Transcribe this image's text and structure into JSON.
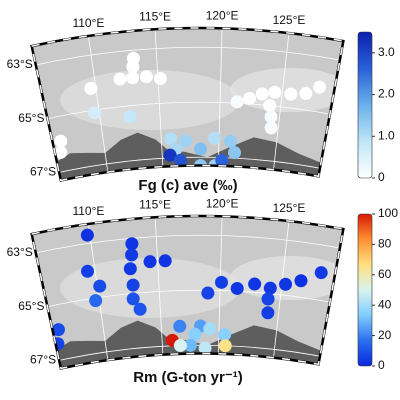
{
  "map": {
    "lon_range": [
      105.7,
      129.1
    ],
    "lat_range": [
      62.3,
      67.3
    ]
  },
  "panels": [
    {
      "title": "Fg (c) ave (‰)",
      "lon_ticks": [
        {
          "value": 110,
          "label": "110°E"
        },
        {
          "value": 115,
          "label": "115°E"
        },
        {
          "value": 120,
          "label": "120°E"
        },
        {
          "value": 125,
          "label": "125°E"
        }
      ],
      "lat_ticks": [
        {
          "value": 63,
          "label": "63°S"
        },
        {
          "value": 65,
          "label": "65°S"
        },
        {
          "value": 67,
          "label": "67°S"
        }
      ],
      "colorbar": {
        "clim": [
          0,
          3.5
        ],
        "colors": [
          "#ffffff",
          "#bfe6f8",
          "#6ab0ea",
          "#2a60d8",
          "#0a20b0"
        ],
        "ticks": [
          0,
          {
            "value": 1,
            "label": "1.0"
          },
          {
            "value": 2,
            "label": "2.0"
          },
          {
            "value": 3,
            "label": "3.0"
          }
        ]
      },
      "points": [
        {
          "lon": 112.0,
          "lat": 64.0,
          "value": 0
        },
        {
          "lon": 113.0,
          "lat": 64.0,
          "value": 0
        },
        {
          "lon": 114.1,
          "lat": 64.0,
          "value": 0
        },
        {
          "lon": 115.2,
          "lat": 64.1,
          "value": 0
        },
        {
          "lon": 113.2,
          "lat": 63.3,
          "value": 0
        },
        {
          "lon": 113.1,
          "lat": 63.6,
          "value": 0
        },
        {
          "lon": 109.6,
          "lat": 64.2,
          "value": 0
        },
        {
          "lon": 121.4,
          "lat": 64.95,
          "value": 0.1
        },
        {
          "lon": 122.4,
          "lat": 64.8,
          "value": 0
        },
        {
          "lon": 123.4,
          "lat": 64.6,
          "value": 0
        },
        {
          "lon": 124.4,
          "lat": 64.5,
          "value": 0
        },
        {
          "lon": 125.7,
          "lat": 64.5,
          "value": 0
        },
        {
          "lon": 126.9,
          "lat": 64.4,
          "value": 0
        },
        {
          "lon": 127.9,
          "lat": 64.1,
          "value": 0
        },
        {
          "lon": 124.1,
          "lat": 65.0,
          "value": 0
        },
        {
          "lon": 124.3,
          "lat": 65.4,
          "value": 0.1
        },
        {
          "lon": 124.4,
          "lat": 65.8,
          "value": 0.1
        },
        {
          "lon": 106.4,
          "lat": 65.9,
          "value": 0
        },
        {
          "lon": 106.2,
          "lat": 66.3,
          "value": 0
        },
        {
          "lon": 109.6,
          "lat": 65.1,
          "value": 0.6
        },
        {
          "lon": 112.5,
          "lat": 65.4,
          "value": 0.8
        },
        {
          "lon": 115.8,
          "lat": 66.3,
          "value": 1.0
        },
        {
          "lon": 117.1,
          "lat": 66.4,
          "value": 1.2
        },
        {
          "lon": 119.6,
          "lat": 66.3,
          "value": 1.0
        },
        {
          "lon": 121.0,
          "lat": 66.4,
          "value": 1.3
        },
        {
          "lon": 118.4,
          "lat": 66.7,
          "value": 1.5
        },
        {
          "lon": 116.2,
          "lat": 66.7,
          "value": 1.1
        },
        {
          "lon": 118.4,
          "lat": 67.3,
          "value": 1.4
        },
        {
          "lon": 119.7,
          "lat": 67.3,
          "value": 1.2
        },
        {
          "lon": 121.4,
          "lat": 66.8,
          "value": 1.4
        },
        {
          "lon": 115.7,
          "lat": 66.9,
          "value": 3.2
        },
        {
          "lon": 116.6,
          "lat": 67.1,
          "value": 2.8
        },
        {
          "lon": 120.3,
          "lat": 67.1,
          "value": 2.6
        }
      ]
    },
    {
      "title": "Rm (G-ton yr⁻¹)",
      "lon_ticks": [
        {
          "value": 110,
          "label": "110°E"
        },
        {
          "value": 115,
          "label": "115°E"
        },
        {
          "value": 120,
          "label": "120°E"
        },
        {
          "value": 125,
          "label": "125°E"
        }
      ],
      "lat_ticks": [
        {
          "value": 63,
          "label": "63°S"
        },
        {
          "value": 65,
          "label": "65°S"
        },
        {
          "value": 67,
          "label": "67°S"
        }
      ],
      "colorbar": {
        "clim": [
          0,
          100
        ],
        "colors": [
          "#0a28e0",
          "#2a70f0",
          "#80ccff",
          "#d8f4f0",
          "#ffe080",
          "#ff9030",
          "#d81808"
        ],
        "ticks": [
          0,
          20,
          40,
          60,
          80,
          100
        ]
      },
      "points": [
        {
          "lon": 109.8,
          "lat": 62.7,
          "value": 2
        },
        {
          "lon": 113.1,
          "lat": 63.2,
          "value": 3
        },
        {
          "lon": 113.0,
          "lat": 63.6,
          "value": 4
        },
        {
          "lon": 109.4,
          "lat": 64.0,
          "value": 5
        },
        {
          "lon": 110.2,
          "lat": 64.6,
          "value": 8
        },
        {
          "lon": 109.7,
          "lat": 65.1,
          "value": 15
        },
        {
          "lon": 112.8,
          "lat": 64.1,
          "value": 4
        },
        {
          "lon": 112.9,
          "lat": 64.7,
          "value": 6
        },
        {
          "lon": 112.8,
          "lat": 65.2,
          "value": 10
        },
        {
          "lon": 114.4,
          "lat": 63.9,
          "value": 3
        },
        {
          "lon": 115.6,
          "lat": 63.9,
          "value": 3
        },
        {
          "lon": 120.1,
          "lat": 64.7,
          "value": 5
        },
        {
          "lon": 121.4,
          "lat": 64.9,
          "value": 3
        },
        {
          "lon": 119.0,
          "lat": 65.1,
          "value": 6
        },
        {
          "lon": 122.8,
          "lat": 64.7,
          "value": 3
        },
        {
          "lon": 124.1,
          "lat": 64.8,
          "value": 4
        },
        {
          "lon": 125.3,
          "lat": 64.6,
          "value": 3
        },
        {
          "lon": 126.5,
          "lat": 64.4,
          "value": 2
        },
        {
          "lon": 128.0,
          "lat": 64.0,
          "value": 4
        },
        {
          "lon": 124.0,
          "lat": 65.2,
          "value": 6
        },
        {
          "lon": 124.1,
          "lat": 65.7,
          "value": 5
        },
        {
          "lon": 106.2,
          "lat": 65.9,
          "value": 8
        },
        {
          "lon": 105.9,
          "lat": 66.4,
          "value": 6
        },
        {
          "lon": 113.3,
          "lat": 65.6,
          "value": 10
        },
        {
          "lon": 116.6,
          "lat": 66.3,
          "value": 20
        },
        {
          "lon": 118.4,
          "lat": 66.3,
          "value": 25
        },
        {
          "lon": 117.9,
          "lat": 66.6,
          "value": 35
        },
        {
          "lon": 119.2,
          "lat": 66.4,
          "value": 40
        },
        {
          "lon": 120.5,
          "lat": 66.6,
          "value": 35
        },
        {
          "lon": 118.8,
          "lat": 67.1,
          "value": 45
        },
        {
          "lon": 117.5,
          "lat": 67.0,
          "value": 30
        },
        {
          "lon": 115.9,
          "lat": 66.8,
          "value": 100
        },
        {
          "lon": 120.6,
          "lat": 67.0,
          "value": 65
        },
        {
          "lon": 116.6,
          "lat": 67.0,
          "value": 50
        }
      ]
    }
  ]
}
